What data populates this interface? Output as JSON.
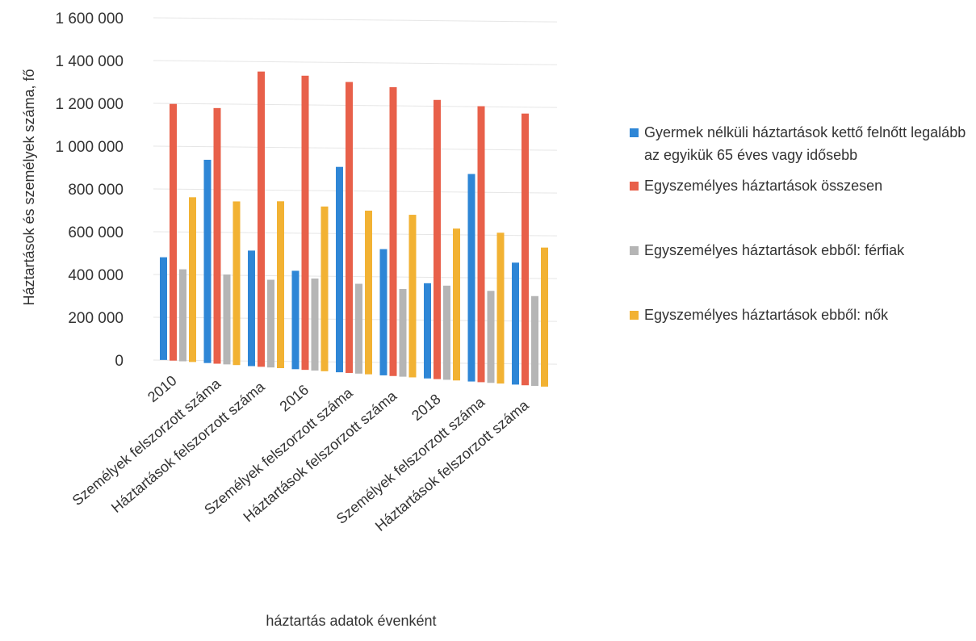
{
  "chart_data": {
    "type": "bar",
    "title": "",
    "ylabel": "Háztartások és személyek száma, fő",
    "xlabel": "háztartás adatok évenként",
    "ylim": [
      0,
      1600000
    ],
    "yticks": [
      "1 600 000",
      "1 400 000",
      "1 200 000",
      "1 000 000",
      "800 000",
      "600 000",
      "400 000",
      "200 000",
      "0"
    ],
    "ytick_values": [
      1600000,
      1400000,
      1200000,
      1000000,
      800000,
      600000,
      400000,
      200000,
      0
    ],
    "categories": [
      "2010",
      "Személyek felszorzott száma",
      "Háztartások felszorzott száma",
      "2016",
      "Személyek felszorzott száma",
      "Háztartások felszorzott száma",
      "2018",
      "Személyek felszorzott száma",
      "Háztartások felszorzott száma"
    ],
    "series": [
      {
        "name": "Gyermek nélküli háztartások kettő felnőtt legalább az egyikük 65 éves vagy idősebb",
        "color": "#2e86d6",
        "values": [
          480000,
          950000,
          540000,
          460000,
          960000,
          590000,
          445000,
          970000,
          570000
        ]
      },
      {
        "name": "Egyszemélyes háztartások összesen",
        "color": "#e8604a",
        "values": [
          1200000,
          1195000,
          1380000,
          1375000,
          1360000,
          1350000,
          1305000,
          1290000,
          1270000
        ]
      },
      {
        "name": "Egyszemélyes háztartások ebből: férfiak",
        "color": "#b5b5b5",
        "values": [
          430000,
          420000,
          410000,
          430000,
          420000,
          410000,
          440000,
          430000,
          420000
        ]
      },
      {
        "name": "Egyszemélyes háztartások ebből: nők",
        "color": "#f2b233",
        "values": [
          770000,
          765000,
          780000,
          770000,
          765000,
          760000,
          710000,
          705000,
          650000
        ]
      }
    ],
    "legend_position": "right",
    "grid": true
  }
}
